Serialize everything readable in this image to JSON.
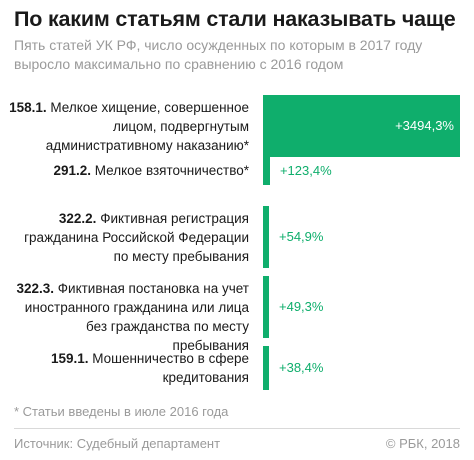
{
  "title": "По каким статьям стали наказывать чаще",
  "subtitle": "Пять статей УК РФ, число осужденных по которым в 2017 году выросло максимально по сравнению с 2016 годом",
  "footnote": "* Статьи введены в июле 2016 года",
  "source": "Источник: Судебный департамент",
  "brand": "© РБК, 2018",
  "colors": {
    "bar": "#0fae6c",
    "text": "#1a1a1a",
    "muted": "#9a9a9a"
  },
  "chart_data": {
    "type": "bar",
    "orientation": "horizontal",
    "categories": [
      "158.1. Мелкое хищение, совершенное лицом, подвергнутым административному наказанию*",
      "291.2. Мелкое взяточничество*",
      "322.2. Фиктивная регистрация гражданина Российской Федерации по месту пребывания",
      "322.3. Фиктивная постановка на учет иностранного гражданина или лица без гражданства по месту пребывания",
      "159.1. Мошенничество в сфере кредитования"
    ],
    "values": [
      3494.3,
      123.4,
      54.9,
      49.3,
      38.4
    ],
    "value_labels": [
      "+3494,3%",
      "+123,4%",
      "+54,9%",
      "+49,3%",
      "+38,4%"
    ],
    "unit": "%",
    "rows": [
      {
        "code": "158.1.",
        "lines": [
          "Мелкое хищение, совершенное",
          "лицом, подвергнутым",
          "административному наказанию*"
        ]
      },
      {
        "code": "291.2.",
        "lines": [
          "Мелкое взяточничество*"
        ]
      },
      {
        "code": "322.2.",
        "lines": [
          "Фиктивная регистрация",
          "гражданина Российской Федерации",
          "по месту пребывания"
        ]
      },
      {
        "code": "322.3.",
        "lines": [
          "Фиктивная постановка на учет",
          "иностранного гражданина или лица",
          "без гражданства по месту пребывания"
        ]
      },
      {
        "code": "159.1.",
        "lines": [
          "Мошенничество в сфере",
          "кредитования"
        ]
      }
    ]
  }
}
